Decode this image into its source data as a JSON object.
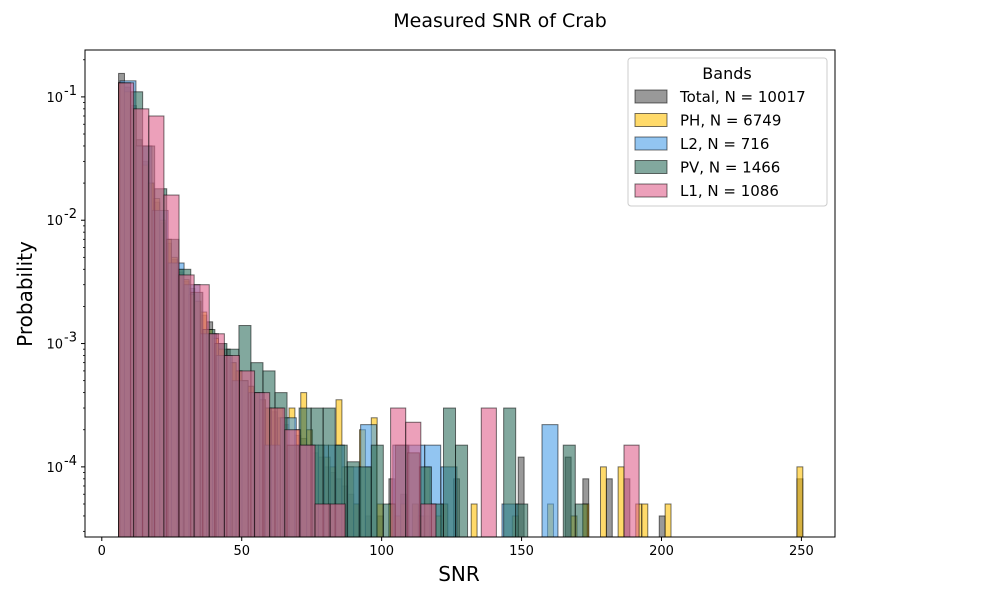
{
  "chart_data": {
    "type": "histogram",
    "title": "Measured SNR of Crab",
    "xlabel": "SNR",
    "ylabel": "Probability",
    "xlim": [
      -6,
      262
    ],
    "ylim": [
      2.7e-05,
      0.24
    ],
    "yscale": "log",
    "bin_width": 5.0,
    "x_ticks": [
      0,
      50,
      100,
      150,
      200,
      250
    ],
    "x_tick_labels": [
      "0",
      "50",
      "100",
      "150",
      "200",
      "250"
    ],
    "y_ticks": [
      0.0001,
      0.001,
      0.01,
      0.1
    ],
    "y_tick_labels": [
      "10^-4",
      "10^-3",
      "10^-2",
      "10^-1"
    ],
    "legend": {
      "title": "Bands",
      "position": "top-right"
    },
    "series": [
      {
        "name": "Total, N = 10017",
        "color": "#555555",
        "bin_width": 2.1,
        "bins": [
          [
            6.0,
            0.155
          ],
          [
            8.1,
            0.12
          ],
          [
            10.2,
            0.085
          ],
          [
            12.3,
            0.045
          ],
          [
            14.4,
            0.03
          ],
          [
            16.5,
            0.02
          ],
          [
            18.6,
            0.014
          ],
          [
            20.7,
            0.0095
          ],
          [
            22.8,
            0.0065
          ],
          [
            24.9,
            0.0048
          ],
          [
            27.0,
            0.0038
          ],
          [
            29.1,
            0.0032
          ],
          [
            31.2,
            0.0028
          ],
          [
            33.3,
            0.0022
          ],
          [
            35.4,
            0.0017
          ],
          [
            37.5,
            0.0015
          ],
          [
            39.6,
            0.0012
          ],
          [
            41.7,
            0.001
          ],
          [
            43.8,
            0.0009
          ],
          [
            45.9,
            0.0007
          ],
          [
            48.0,
            0.0006
          ],
          [
            50.1,
            0.0005
          ],
          [
            52.2,
            0.00045
          ],
          [
            54.3,
            0.0004
          ],
          [
            56.4,
            0.00035
          ],
          [
            58.5,
            0.0003
          ],
          [
            60.6,
            0.00028
          ],
          [
            62.7,
            0.00025
          ],
          [
            64.8,
            0.00022
          ],
          [
            66.9,
            0.0002
          ],
          [
            69.0,
            0.00018
          ],
          [
            71.1,
            0.00017
          ],
          [
            73.2,
            0.00015
          ],
          [
            75.3,
            0.00013
          ],
          [
            77.4,
            0.00012
          ],
          [
            79.5,
            0.0001
          ],
          [
            81.6,
            9e-05
          ],
          [
            83.7,
            8e-05
          ],
          [
            85.8,
            7e-05
          ],
          [
            87.9,
            6e-05
          ],
          [
            90.0,
            5e-05
          ],
          [
            94.2,
            4e-05
          ],
          [
            98.4,
            4e-05
          ],
          [
            102.6,
            8e-05
          ],
          [
            106.8,
            6e-05
          ],
          [
            111.0,
            5e-05
          ],
          [
            115.2,
            4e-05
          ],
          [
            121.5,
            5e-05
          ],
          [
            125.7,
            8e-05
          ],
          [
            148.8,
            0.00012
          ],
          [
            165.6,
            0.00012
          ],
          [
            171.9,
            8e-05
          ],
          [
            180.3,
            8e-05
          ],
          [
            186.6,
            8e-05
          ],
          [
            199.2,
            4e-05
          ],
          [
            248.4,
            8e-05
          ]
        ]
      },
      {
        "name": "PH, N = 6749",
        "color": "#ffc107",
        "bin_width": 2.1,
        "bins": [
          [
            6.0,
            0.13
          ],
          [
            8.1,
            0.11
          ],
          [
            10.2,
            0.08
          ],
          [
            12.3,
            0.04
          ],
          [
            14.4,
            0.028
          ],
          [
            16.5,
            0.02
          ],
          [
            18.6,
            0.015
          ],
          [
            20.7,
            0.01
          ],
          [
            22.8,
            0.007
          ],
          [
            24.9,
            0.005
          ],
          [
            27.0,
            0.004
          ],
          [
            29.1,
            0.0033
          ],
          [
            31.2,
            0.0025
          ],
          [
            33.3,
            0.0022
          ],
          [
            35.4,
            0.0018
          ],
          [
            37.5,
            0.0013
          ],
          [
            39.6,
            0.0011
          ],
          [
            41.7,
            0.0009
          ],
          [
            43.8,
            0.0008
          ],
          [
            45.9,
            0.0007
          ],
          [
            48.0,
            0.0006
          ],
          [
            50.1,
            0.0005
          ],
          [
            52.2,
            0.00045
          ],
          [
            54.3,
            0.0004
          ],
          [
            56.4,
            0.00035
          ],
          [
            58.5,
            0.0003
          ],
          [
            60.6,
            0.0003
          ],
          [
            62.7,
            0.0003
          ],
          [
            64.8,
            0.00025
          ],
          [
            66.9,
            0.0003
          ],
          [
            69.0,
            0.0002
          ],
          [
            71.1,
            0.0004
          ],
          [
            73.2,
            0.0002
          ],
          [
            75.3,
            0.00015
          ],
          [
            77.4,
            0.00015
          ],
          [
            79.5,
            0.00012
          ],
          [
            81.6,
            0.0001
          ],
          [
            83.7,
            0.00035
          ],
          [
            85.8,
            0.0001
          ],
          [
            87.9,
            0.0001
          ],
          [
            90.0,
            5e-05
          ],
          [
            92.1,
            0.0002
          ],
          [
            94.2,
            0.0001
          ],
          [
            96.3,
            0.00025
          ],
          [
            98.4,
            5e-05
          ],
          [
            102.6,
            5e-05
          ],
          [
            104.7,
            4e-05
          ],
          [
            106.8,
            5e-05
          ],
          [
            111.0,
            5e-05
          ],
          [
            113.1,
            4e-05
          ],
          [
            115.2,
            0.0001
          ],
          [
            117.3,
            5e-05
          ],
          [
            119.4,
            4e-05
          ],
          [
            121.5,
            5e-05
          ],
          [
            132.0,
            5e-05
          ],
          [
            146.7,
            4e-05
          ],
          [
            159.3,
            5e-05
          ],
          [
            167.7,
            4e-05
          ],
          [
            171.9,
            5e-05
          ],
          [
            178.2,
            0.0001
          ],
          [
            184.5,
            0.0001
          ],
          [
            190.8,
            5e-05
          ],
          [
            193.0,
            5e-05
          ],
          [
            201.3,
            5e-05
          ],
          [
            248.4,
            0.0001
          ]
        ]
      },
      {
        "name": "L2, N = 716",
        "color": "#4a9fe8",
        "bin_width": 5.7,
        "bins": [
          [
            6.5,
            0.135
          ],
          [
            12.2,
            0.04
          ],
          [
            18.0,
            0.012
          ],
          [
            23.7,
            0.0045
          ],
          [
            29.4,
            0.003
          ],
          [
            35.2,
            0.0012
          ],
          [
            40.9,
            0.0008
          ],
          [
            46.6,
            0.0005
          ],
          [
            52.4,
            0.0004
          ],
          [
            58.1,
            0.00015
          ],
          [
            63.8,
            0.00025
          ],
          [
            69.6,
            0.00015
          ],
          [
            75.3,
            0.00015
          ],
          [
            81.0,
            0.00015
          ],
          [
            86.8,
            0.0001
          ],
          [
            92.5,
            0.00022
          ],
          [
            104.0,
            0.00015
          ],
          [
            109.7,
            0.00015
          ],
          [
            115.4,
            0.00015
          ],
          [
            121.2,
            0.0001
          ],
          [
            143.0,
            5e-05
          ],
          [
            157.3,
            0.00022
          ]
        ]
      },
      {
        "name": "PV, N = 1466",
        "color": "#2f6e5e",
        "bin_width": 4.3,
        "bins": [
          [
            6.0,
            0.13
          ],
          [
            10.3,
            0.11
          ],
          [
            14.6,
            0.04
          ],
          [
            18.9,
            0.018
          ],
          [
            23.2,
            0.007
          ],
          [
            27.5,
            0.004
          ],
          [
            31.8,
            0.0026
          ],
          [
            36.1,
            0.0013
          ],
          [
            40.4,
            0.001
          ],
          [
            44.7,
            0.0009
          ],
          [
            49.0,
            0.0014
          ],
          [
            53.3,
            0.0007
          ],
          [
            57.6,
            0.0006
          ],
          [
            61.9,
            0.0004
          ],
          [
            66.2,
            0.00015
          ],
          [
            70.5,
            0.0003
          ],
          [
            74.8,
            0.0003
          ],
          [
            79.1,
            0.0003
          ],
          [
            83.4,
            0.00015
          ],
          [
            87.7,
            0.00011
          ],
          [
            92.0,
            0.0001
          ],
          [
            96.3,
            0.00015
          ],
          [
            100.6,
            5e-05
          ],
          [
            104.9,
            0.00015
          ],
          [
            109.2,
            0.00013
          ],
          [
            113.5,
            0.0001
          ],
          [
            117.8,
            5e-05
          ],
          [
            122.1,
            0.0003
          ],
          [
            126.4,
            0.00015
          ],
          [
            143.6,
            0.0003
          ],
          [
            147.9,
            5e-05
          ],
          [
            164.9,
            0.00015
          ],
          [
            169.2,
            5e-05
          ]
        ]
      },
      {
        "name": "L1, N = 1086",
        "color": "#e0608c",
        "bin_width": 5.4,
        "bins": [
          [
            6.0,
            0.13
          ],
          [
            11.4,
            0.08
          ],
          [
            16.8,
            0.07
          ],
          [
            22.2,
            0.016
          ],
          [
            27.6,
            0.0036
          ],
          [
            33.0,
            0.003
          ],
          [
            38.4,
            0.0012
          ],
          [
            43.8,
            0.0008
          ],
          [
            49.2,
            0.0006
          ],
          [
            54.6,
            0.0004
          ],
          [
            60.0,
            0.0003
          ],
          [
            65.4,
            0.0002
          ],
          [
            70.8,
            0.00015
          ],
          [
            76.2,
            5e-05
          ],
          [
            81.6,
            5e-05
          ],
          [
            103.2,
            0.0003
          ],
          [
            108.6,
            0.00023
          ],
          [
            114.0,
            5e-05
          ],
          [
            135.6,
            0.0003
          ],
          [
            186.6,
            0.00015
          ]
        ]
      }
    ]
  }
}
